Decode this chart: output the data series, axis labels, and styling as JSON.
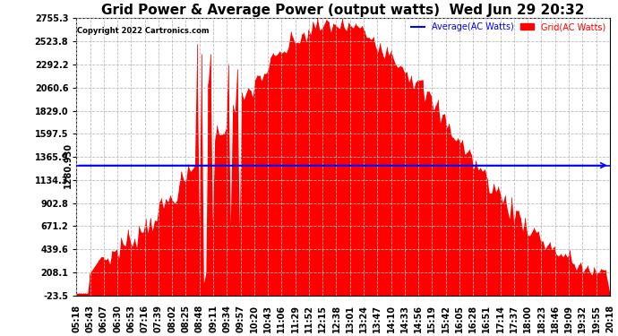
{
  "title": "Grid Power & Average Power (output watts)  Wed Jun 29 20:32",
  "copyright": "Copyright 2022 Cartronics.com",
  "legend_labels": [
    "Average(AC Watts)",
    "Grid(AC Watts)"
  ],
  "legend_colors": [
    "blue",
    "red"
  ],
  "y_ticks": [
    2755.3,
    2523.8,
    2292.2,
    2060.6,
    1829.0,
    1597.5,
    1365.9,
    1134.3,
    902.8,
    671.2,
    439.6,
    208.1,
    -23.5
  ],
  "y_left_label": "1280.930",
  "average_line_y": 1280.93,
  "ymin": -23.5,
  "ymax": 2755.3,
  "background_color": "#ffffff",
  "plot_bg_color": "#ffffff",
  "grid_color": "#bbbbbb",
  "fill_color": "red",
  "avg_line_color": "blue",
  "title_fontsize": 11,
  "tick_fontsize": 7,
  "peak_idx": 19,
  "sigma": 8.5,
  "peak_val": 2720,
  "n_points": 40
}
